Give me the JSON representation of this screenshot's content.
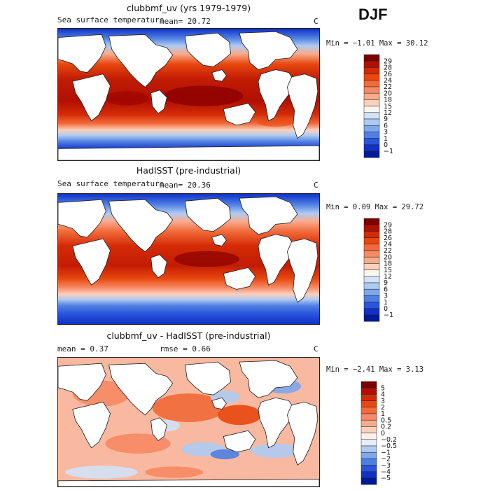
{
  "season": "DJF",
  "panels": [
    {
      "title": "clubbmf_uv (yrs 1979-1979)",
      "variable": "Sea surface temperature",
      "stat1": "mean=  20.72",
      "unit": "C",
      "minmax": "Min =  −1.01 Max =  30.12",
      "colorbar_labels": [
        "29",
        "28",
        "26",
        "24",
        "22",
        "20",
        "18",
        "15",
        "12",
        "9",
        "6",
        "3",
        "1",
        "0",
        "−1"
      ],
      "palette": [
        "#7a0000",
        "#b10f02",
        "#d42a06",
        "#e8470e",
        "#f26a3a",
        "#f78a64",
        "#f9ab8e",
        "#fbd0bd",
        "#fbf5ef",
        "#d3e2f6",
        "#aecbf2",
        "#7fa8ec",
        "#4f7fe3",
        "#2a55db",
        "#1030c8",
        "#001a9a"
      ]
    },
    {
      "title": "HadISST (pre-industrial)",
      "variable": "Sea surface temperature",
      "stat1": "mean=  20.36",
      "unit": "C",
      "minmax": "Min =   0.09 Max =  29.72",
      "colorbar_labels": [
        "29",
        "28",
        "26",
        "24",
        "22",
        "20",
        "18",
        "15",
        "12",
        "9",
        "6",
        "3",
        "1",
        "0",
        "−1"
      ],
      "palette": [
        "#7a0000",
        "#b10f02",
        "#d42a06",
        "#e8470e",
        "#f26a3a",
        "#f78a64",
        "#f9ab8e",
        "#fbd0bd",
        "#fbf5ef",
        "#d3e2f6",
        "#aecbf2",
        "#7fa8ec",
        "#4f7fe3",
        "#2a55db",
        "#1030c8",
        "#001a9a"
      ]
    },
    {
      "title": "clubbmf_uv - HadISST (pre-industrial)",
      "stat1": "mean =   0.37",
      "stat2": "rmse =   0.66",
      "unit": "C",
      "minmax": "Min =  −2.41 Max =   3.13",
      "colorbar_labels": [
        "5",
        "4",
        "3",
        "2",
        "1",
        "0.5",
        "0.2",
        "0",
        "−0.2",
        "−0.5",
        "−1",
        "−2",
        "−3",
        "−4",
        "−5"
      ],
      "palette": [
        "#7a0000",
        "#b10f02",
        "#d42a06",
        "#e8470e",
        "#f26a3a",
        "#f78a64",
        "#f9ab8e",
        "#fbd0bd",
        "#fbf1ea",
        "#e6eefa",
        "#aecbf2",
        "#7fa8ec",
        "#4f7fe3",
        "#2a55db",
        "#1030c8",
        "#001a9a"
      ]
    }
  ]
}
